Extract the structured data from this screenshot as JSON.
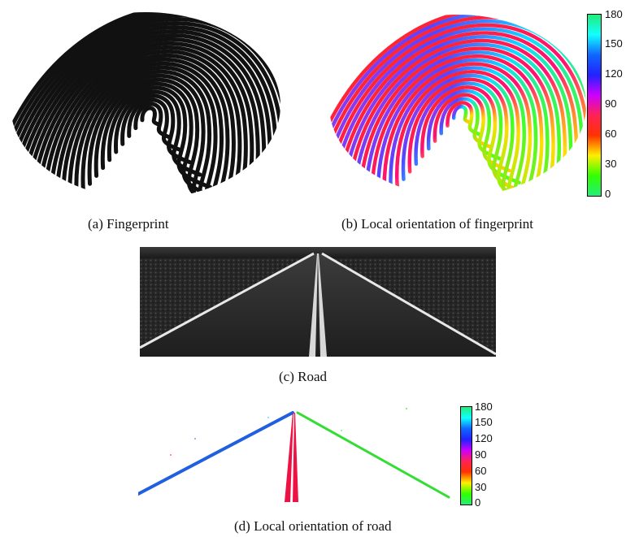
{
  "captions": {
    "a": "(a)  Fingerprint",
    "b": "(b)  Local orientation of fingerprint",
    "c": "(c)  Road",
    "d": "(d)  Local orientation of road"
  },
  "colorbar_top": {
    "ticks": [
      "180",
      "150",
      "120",
      "90",
      "60",
      "30",
      "0"
    ],
    "gradient": [
      "#22ee77",
      "#11ffff",
      "#1166ff",
      "#2222ff",
      "#cc00ff",
      "#ff2255",
      "#ff3300",
      "#ffee00",
      "#33ff00",
      "#22ee77"
    ]
  },
  "colorbar_bottom": {
    "ticks": [
      "180",
      "150",
      "120",
      "90",
      "60",
      "30",
      "0"
    ]
  },
  "colors": {
    "ridge": "#111111",
    "road_left_line": "#2266dd",
    "road_right_line": "#33dd33",
    "road_center_line": "#ee1144"
  }
}
